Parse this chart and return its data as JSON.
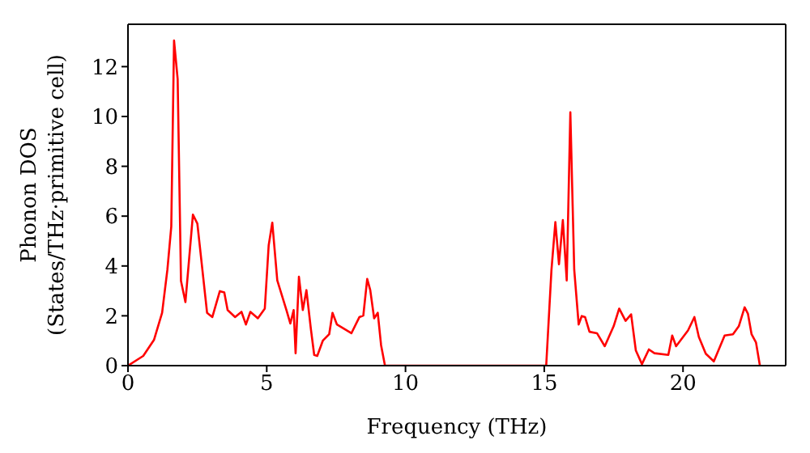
{
  "chart_data": {
    "type": "line",
    "xlabel": "Frequency (THz)",
    "ylabel": "Phonon DOS\n(States/THz·primitive cell)",
    "xlim": [
      0,
      23.7
    ],
    "ylim": [
      0,
      13.7
    ],
    "xticks": [
      0,
      5,
      10,
      15,
      20
    ],
    "yticks": [
      0,
      2,
      4,
      6,
      8,
      10,
      12
    ],
    "legend": false,
    "marker": "none",
    "line_style": "solid",
    "series": [
      {
        "color": "#ff0000",
        "x": [
          0,
          0.55,
          0.94,
          1.23,
          1.42,
          1.56,
          1.66,
          1.79,
          1.91,
          2.07,
          2.34,
          2.5,
          2.85,
          3.04,
          3.31,
          3.47,
          3.59,
          3.86,
          4.09,
          4.25,
          4.41,
          4.68,
          4.93,
          5.07,
          5.2,
          5.38,
          5.71,
          5.85,
          5.97,
          6.04,
          6.16,
          6.3,
          6.43,
          6.59,
          6.71,
          6.82,
          7.02,
          7.25,
          7.37,
          7.53,
          8.05,
          8.34,
          8.48,
          8.62,
          8.73,
          8.87,
          9.0,
          9.12,
          9.26,
          15.07,
          15.26,
          15.4,
          15.53,
          15.67,
          15.81,
          15.94,
          16.08,
          16.24,
          16.35,
          16.47,
          16.63,
          16.9,
          17.18,
          17.5,
          17.7,
          17.93,
          18.13,
          18.3,
          18.52,
          18.77,
          18.97,
          19.47,
          19.61,
          19.75,
          20.18,
          20.41,
          20.57,
          20.82,
          21.11,
          21.5,
          21.8,
          22.01,
          22.22,
          22.34,
          22.47,
          22.63,
          22.77
        ],
        "values": [
          0,
          0.39,
          1.04,
          2.12,
          3.85,
          5.58,
          13.05,
          11.5,
          3.4,
          2.55,
          6.06,
          5.7,
          2.12,
          1.95,
          2.99,
          2.94,
          2.23,
          1.95,
          2.16,
          1.65,
          2.16,
          1.9,
          2.29,
          4.83,
          5.74,
          3.42,
          2.23,
          1.69,
          2.23,
          0.5,
          3.57,
          2.23,
          3.03,
          1.47,
          0.43,
          0.39,
          1.0,
          1.26,
          2.12,
          1.65,
          1.3,
          1.95,
          2.01,
          3.48,
          3.03,
          1.9,
          2.12,
          0.82,
          0,
          0,
          3.85,
          5.76,
          4.07,
          5.84,
          3.42,
          10.17,
          3.85,
          1.65,
          1.99,
          1.95,
          1.36,
          1.3,
          0.78,
          1.58,
          2.29,
          1.8,
          2.06,
          0.61,
          0.06,
          0.65,
          0.5,
          0.43,
          1.21,
          0.78,
          1.41,
          1.95,
          1.15,
          0.48,
          0.17,
          1.21,
          1.26,
          1.58,
          2.34,
          2.08,
          1.26,
          0.93,
          0
        ]
      }
    ]
  }
}
